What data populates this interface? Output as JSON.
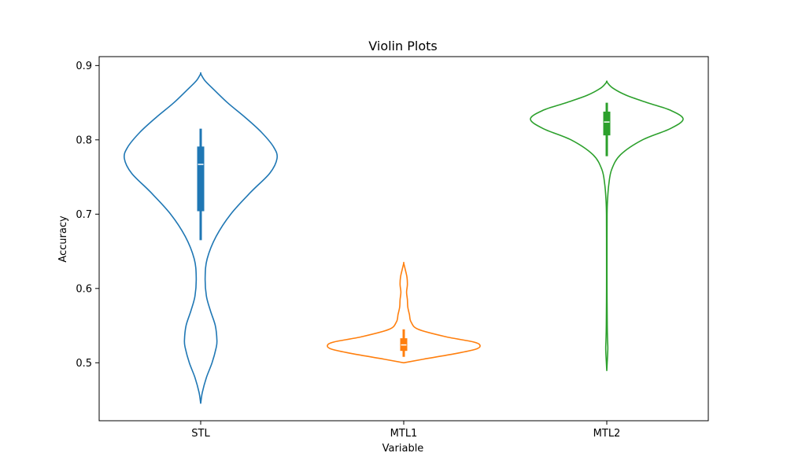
{
  "chart_data": {
    "type": "violin",
    "title": "Violin Plots",
    "xlabel": "Variable",
    "ylabel": "Accuracy",
    "categories": [
      "STL",
      "MTL1",
      "MTL2"
    ],
    "ylim": [
      0.422,
      0.912
    ],
    "yticks": [
      "0.5",
      "0.6",
      "0.7",
      "0.8",
      "0.9"
    ],
    "grid": false,
    "colors": [
      "#1f77b4",
      "#ff7f0e",
      "#2ca02c"
    ],
    "violins": [
      {
        "min": 0.445,
        "max": 0.889,
        "box": {
          "whisker_low": 0.665,
          "q1": 0.704,
          "median": 0.767,
          "q3": 0.791,
          "whisker_high": 0.815
        },
        "profile": [
          [
            0.445,
            0.0
          ],
          [
            0.46,
            0.02
          ],
          [
            0.48,
            0.07
          ],
          [
            0.5,
            0.14
          ],
          [
            0.52,
            0.19
          ],
          [
            0.53,
            0.2
          ],
          [
            0.55,
            0.18
          ],
          [
            0.57,
            0.12
          ],
          [
            0.59,
            0.07
          ],
          [
            0.615,
            0.055
          ],
          [
            0.64,
            0.08
          ],
          [
            0.67,
            0.19
          ],
          [
            0.7,
            0.37
          ],
          [
            0.73,
            0.62
          ],
          [
            0.755,
            0.85
          ],
          [
            0.775,
            0.94
          ],
          [
            0.79,
            0.9
          ],
          [
            0.81,
            0.75
          ],
          [
            0.83,
            0.55
          ],
          [
            0.85,
            0.33
          ],
          [
            0.87,
            0.14
          ],
          [
            0.88,
            0.05
          ],
          [
            0.889,
            0.0
          ]
        ]
      },
      {
        "min": 0.5,
        "max": 0.634,
        "box": {
          "whisker_low": 0.508,
          "q1": 0.516,
          "median": 0.524,
          "q3": 0.533,
          "whisker_high": 0.545
        },
        "profile": [
          [
            0.5,
            0.0
          ],
          [
            0.505,
            0.25
          ],
          [
            0.512,
            0.62
          ],
          [
            0.518,
            0.88
          ],
          [
            0.523,
            0.94
          ],
          [
            0.528,
            0.86
          ],
          [
            0.535,
            0.52
          ],
          [
            0.545,
            0.18
          ],
          [
            0.555,
            0.09
          ],
          [
            0.565,
            0.07
          ],
          [
            0.575,
            0.05
          ],
          [
            0.585,
            0.045
          ],
          [
            0.595,
            0.035
          ],
          [
            0.605,
            0.045
          ],
          [
            0.615,
            0.04
          ],
          [
            0.625,
            0.02
          ],
          [
            0.634,
            0.0
          ]
        ]
      },
      {
        "min": 0.489,
        "max": 0.878,
        "box": {
          "whisker_low": 0.778,
          "q1": 0.806,
          "median": 0.824,
          "q3": 0.838,
          "whisker_high": 0.85
        },
        "profile": [
          [
            0.489,
            0.0
          ],
          [
            0.5,
            0.005
          ],
          [
            0.51,
            0.01
          ],
          [
            0.52,
            0.013
          ],
          [
            0.53,
            0.01
          ],
          [
            0.55,
            0.006
          ],
          [
            0.6,
            0.003
          ],
          [
            0.65,
            0.003
          ],
          [
            0.7,
            0.004
          ],
          [
            0.72,
            0.01
          ],
          [
            0.74,
            0.025
          ],
          [
            0.76,
            0.06
          ],
          [
            0.78,
            0.17
          ],
          [
            0.8,
            0.44
          ],
          [
            0.815,
            0.78
          ],
          [
            0.828,
            0.94
          ],
          [
            0.84,
            0.78
          ],
          [
            0.85,
            0.5
          ],
          [
            0.86,
            0.24
          ],
          [
            0.87,
            0.07
          ],
          [
            0.878,
            0.0
          ]
        ]
      }
    ]
  }
}
